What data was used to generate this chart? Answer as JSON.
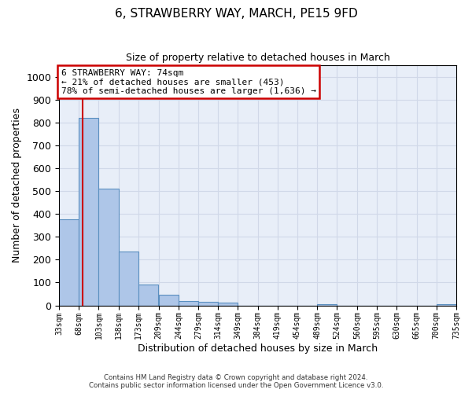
{
  "title": "6, STRAWBERRY WAY, MARCH, PE15 9FD",
  "subtitle": "Size of property relative to detached houses in March",
  "xlabel": "Distribution of detached houses by size in March",
  "ylabel": "Number of detached properties",
  "bin_edges": [
    33,
    68,
    103,
    138,
    173,
    209,
    244,
    279,
    314,
    349,
    384,
    419,
    454,
    489,
    524,
    560,
    595,
    630,
    665,
    700,
    735
  ],
  "bar_heights": [
    375,
    820,
    510,
    235,
    90,
    48,
    18,
    16,
    12,
    0,
    0,
    0,
    0,
    5,
    0,
    0,
    0,
    0,
    0,
    5
  ],
  "bar_color": "#aec6e8",
  "bar_edge_color": "#5a8fc0",
  "property_size": 74,
  "property_line_color": "#cc0000",
  "annotation_line1": "6 STRAWBERRY WAY: 74sqm",
  "annotation_line2": "← 21% of detached houses are smaller (453)",
  "annotation_line3": "78% of semi-detached houses are larger (1,636) →",
  "annotation_box_color": "#cc0000",
  "ylim": [
    0,
    1050
  ],
  "yticks": [
    0,
    100,
    200,
    300,
    400,
    500,
    600,
    700,
    800,
    900,
    1000
  ],
  "grid_color": "#d0d8e8",
  "background_color": "#e8eef8",
  "footer_line1": "Contains HM Land Registry data © Crown copyright and database right 2024.",
  "footer_line2": "Contains public sector information licensed under the Open Government Licence v3.0."
}
